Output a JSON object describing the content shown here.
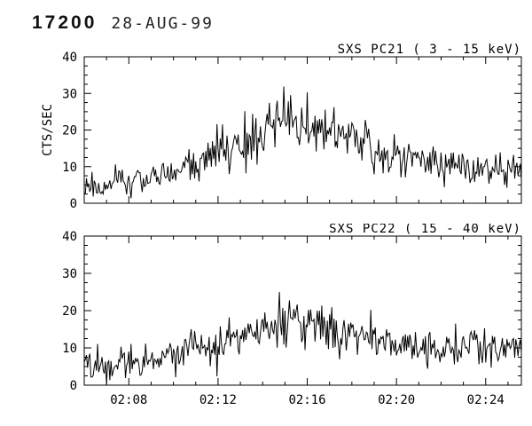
{
  "header": {
    "obs_id": "17200",
    "date": "28-AUG-99"
  },
  "chart_data": [
    {
      "type": "line",
      "title": "SXS PC21 ( 3 - 15 keV)",
      "ylabel": "CTS/SEC",
      "xlabel": "",
      "ylim": [
        0,
        40
      ],
      "yticks": [
        0,
        10,
        20,
        30,
        40
      ],
      "ytick_minor": 2.5,
      "xlim_minutes": [
        6.0,
        25.6
      ],
      "xtick_minutes": [
        8,
        12,
        16,
        20,
        24
      ],
      "grid": false,
      "legend": false,
      "line_color": "#000000",
      "envelope": {
        "x_minutes": [
          6.0,
          6.5,
          7.0,
          7.4,
          8.0,
          9.0,
          10.0,
          10.5,
          11.0,
          11.5,
          12.0,
          12.5,
          13.0,
          13.5,
          14.0,
          14.5,
          15.0,
          15.5,
          16.0,
          16.5,
          17.0,
          17.5,
          18.0,
          18.5,
          19.0,
          19.5,
          20.0,
          20.5,
          21.0,
          21.5,
          22.0,
          22.5,
          23.0,
          23.5,
          24.0,
          24.5,
          25.0,
          25.6
        ],
        "mean_cts": [
          5,
          5,
          3.5,
          5.5,
          6,
          7,
          8.5,
          9.5,
          11,
          12.5,
          13.5,
          15,
          16,
          17.5,
          19,
          21,
          22,
          22.5,
          22,
          21,
          20.5,
          19.5,
          18,
          16.5,
          15,
          14,
          13,
          12.5,
          12,
          11.5,
          11,
          10.5,
          10,
          9.5,
          9,
          9,
          8.5,
          9
        ]
      },
      "noise": {
        "seed": 21,
        "sigma_scale": 0.85,
        "dt_seconds": 3
      }
    },
    {
      "type": "line",
      "title": "SXS PC22 ( 15 - 40 keV)",
      "ylabel": "",
      "xlabel": "",
      "ylim": [
        0,
        40
      ],
      "yticks": [
        0,
        10,
        20,
        30,
        40
      ],
      "ytick_minor": 2.5,
      "xlim_minutes": [
        6.0,
        25.6
      ],
      "xtick_minutes": [
        8,
        12,
        16,
        20,
        24
      ],
      "xtick_labels": [
        "02:08",
        "02:12",
        "02:16",
        "02:20",
        "02:24"
      ],
      "grid": false,
      "legend": false,
      "line_color": "#000000",
      "envelope": {
        "x_minutes": [
          6.0,
          6.5,
          7.0,
          7.5,
          8.0,
          9.0,
          10.0,
          10.5,
          11.0,
          11.5,
          12.0,
          12.5,
          13.0,
          13.5,
          14.0,
          14.5,
          15.0,
          15.3,
          15.6,
          16.0,
          16.5,
          17.0,
          17.5,
          18.0,
          18.5,
          19.0,
          19.5,
          20.0,
          20.5,
          21.0,
          22.0,
          23.0,
          23.5,
          24.0,
          25.0,
          25.6
        ],
        "mean_cts": [
          6,
          5.5,
          4.5,
          6,
          7,
          7.5,
          8,
          8.5,
          9.5,
          10.5,
          11.5,
          12,
          13,
          13.5,
          14.5,
          15.5,
          16.5,
          17,
          16.5,
          16,
          15.5,
          15,
          14,
          13.5,
          13,
          12.5,
          12,
          11.5,
          11,
          10.5,
          10,
          10,
          10.5,
          10,
          9.5,
          10
        ]
      },
      "noise": {
        "seed": 22,
        "sigma_scale": 0.8,
        "dt_seconds": 3
      }
    }
  ]
}
